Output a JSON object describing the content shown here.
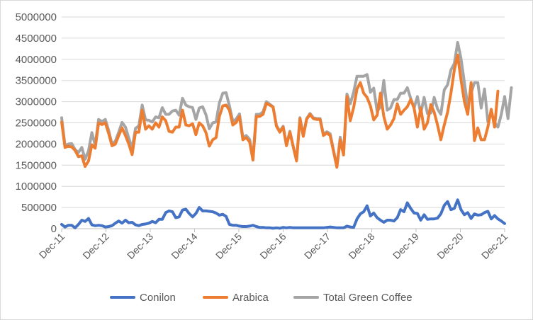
{
  "chart_data": {
    "type": "line",
    "title": "",
    "xlabel": "",
    "ylabel": "",
    "ylim": [
      0,
      5000000
    ],
    "y_ticks": [
      "0",
      "500000",
      "1000000",
      "1500000",
      "2000000",
      "2500000",
      "3000000",
      "3500000",
      "4000000",
      "4500000",
      "5000000"
    ],
    "x_tick_labels": [
      "Dec-11",
      "Dec-12",
      "Dec-13",
      "Dec-14",
      "Dec-15",
      "Dec-16",
      "Dec-17",
      "Dec-18",
      "Dec-19",
      "Dec-20",
      "Dec-21"
    ],
    "grid": "horizontal",
    "legend_position": "bottom",
    "series": [
      {
        "name": "Conilon",
        "color": "#4472C4",
        "values": [
          100000,
          40000,
          80000,
          80000,
          20000,
          100000,
          200000,
          170000,
          240000,
          90000,
          70000,
          80000,
          70000,
          40000,
          50000,
          70000,
          130000,
          180000,
          130000,
          200000,
          140000,
          150000,
          90000,
          70000,
          100000,
          110000,
          130000,
          170000,
          140000,
          220000,
          220000,
          380000,
          420000,
          400000,
          260000,
          280000,
          440000,
          460000,
          360000,
          280000,
          360000,
          500000,
          420000,
          420000,
          410000,
          400000,
          370000,
          320000,
          340000,
          290000,
          100000,
          80000,
          80000,
          60000,
          50000,
          50000,
          60000,
          80000,
          50000,
          30000,
          30000,
          20000,
          20000,
          10000,
          20000,
          10000,
          30000,
          20000,
          30000,
          20000,
          20000,
          20000,
          20000,
          20000,
          20000,
          20000,
          20000,
          20000,
          20000,
          30000,
          40000,
          30000,
          20000,
          20000,
          20000,
          60000,
          40000,
          30000,
          230000,
          350000,
          400000,
          540000,
          300000,
          370000,
          260000,
          200000,
          150000,
          200000,
          200000,
          180000,
          260000,
          450000,
          400000,
          610000,
          480000,
          370000,
          360000,
          200000,
          330000,
          220000,
          230000,
          230000,
          250000,
          350000,
          550000,
          640000,
          450000,
          480000,
          680000,
          450000,
          330000,
          380000,
          240000,
          350000,
          320000,
          330000,
          380000,
          410000,
          230000,
          310000,
          230000,
          180000,
          120000
        ]
      },
      {
        "name": "Arabica",
        "color": "#ED7D31",
        "values": [
          2520000,
          1920000,
          1950000,
          1930000,
          1850000,
          1700000,
          1720000,
          1470000,
          1600000,
          1980000,
          1900000,
          2500000,
          2460000,
          2500000,
          2250000,
          1960000,
          2000000,
          2200000,
          2380000,
          2200000,
          2000000,
          1750000,
          2280000,
          2280000,
          2800000,
          2350000,
          2430000,
          2350000,
          2500000,
          2400000,
          2640000,
          2550000,
          2300000,
          2280000,
          2400000,
          2400000,
          2800000,
          2450000,
          2430000,
          2480000,
          2220000,
          2500000,
          2430000,
          2270000,
          1950000,
          2100000,
          2150000,
          2650000,
          2900000,
          2920000,
          2800000,
          2450000,
          2510000,
          2650000,
          2100000,
          2150000,
          2050000,
          1620000,
          2650000,
          2650000,
          2700000,
          2960000,
          2920000,
          2870000,
          2420000,
          2280000,
          2400000,
          1960000,
          2280000,
          1930000,
          1600000,
          2600000,
          2180000,
          2580000,
          2700000,
          2600000,
          2580000,
          2580000,
          2200000,
          2260000,
          2200000,
          1830000,
          1450000,
          2100000,
          1740000,
          3120000,
          2550000,
          2860000,
          3300000,
          3450000,
          3200000,
          3100000,
          2900000,
          2570000,
          2680000,
          3200000,
          2650000,
          2350000,
          2450000,
          2600000,
          2950000,
          2700000,
          2800000,
          2880000,
          3050000,
          2850000,
          2400000,
          2850000,
          2350000,
          2500000,
          2930000,
          2750000,
          2450000,
          2100000,
          2450000,
          2750000,
          3200000,
          3750000,
          4100000,
          3520000,
          3000000,
          2700000,
          3450000,
          2080000,
          2380000,
          2100000,
          2100000,
          2400000,
          2820000,
          2400000,
          3250000
        ]
      },
      {
        "name": "Total Green Coffee",
        "color": "#A5A5A5",
        "values": [
          2620000,
          1960000,
          2000000,
          2010000,
          1870000,
          1800000,
          1920000,
          1640000,
          1840000,
          2270000,
          1970000,
          2580000,
          2530000,
          2580000,
          2320000,
          2000000,
          2070000,
          2280000,
          2510000,
          2400000,
          2140000,
          1900000,
          2370000,
          2430000,
          2920000,
          2570000,
          2560000,
          2520000,
          2640000,
          2620000,
          2860000,
          2700000,
          2700000,
          2780000,
          2800000,
          2680000,
          3080000,
          2920000,
          2880000,
          2860000,
          2580000,
          2850000,
          2880000,
          2690000,
          2360000,
          2500000,
          2520000,
          2970000,
          3200000,
          3210000,
          2900000,
          2530000,
          2590000,
          2710000,
          2150000,
          2200000,
          2110000,
          1680000,
          2700000,
          2700000,
          2760000,
          3000000,
          2940000,
          2880000,
          2440000,
          2300000,
          2420000,
          1980000,
          2300000,
          1950000,
          1620000,
          2620000,
          2200000,
          2600000,
          2720000,
          2620000,
          2600000,
          2600000,
          2230000,
          2290000,
          2240000,
          1860000,
          1470000,
          2160000,
          1780000,
          3180000,
          2950000,
          3220000,
          3600000,
          3600000,
          3600000,
          3640000,
          3220000,
          3320000,
          2770000,
          2880000,
          3500000,
          2800000,
          2850000,
          3050000,
          3050000,
          3200000,
          3200000,
          3330000,
          3080000,
          2850000,
          3120000,
          2720000,
          3100000,
          2720000,
          2730000,
          3100000,
          2830000,
          2700000,
          3280000,
          3400000,
          3750000,
          3900000,
          4400000,
          4020000,
          3450000,
          2900000,
          3200000,
          3450000,
          3450000,
          2850000,
          3300000,
          2530000,
          2760000,
          2500000,
          2400000,
          2700000,
          3120000,
          2600000,
          3330000
        ]
      }
    ]
  }
}
